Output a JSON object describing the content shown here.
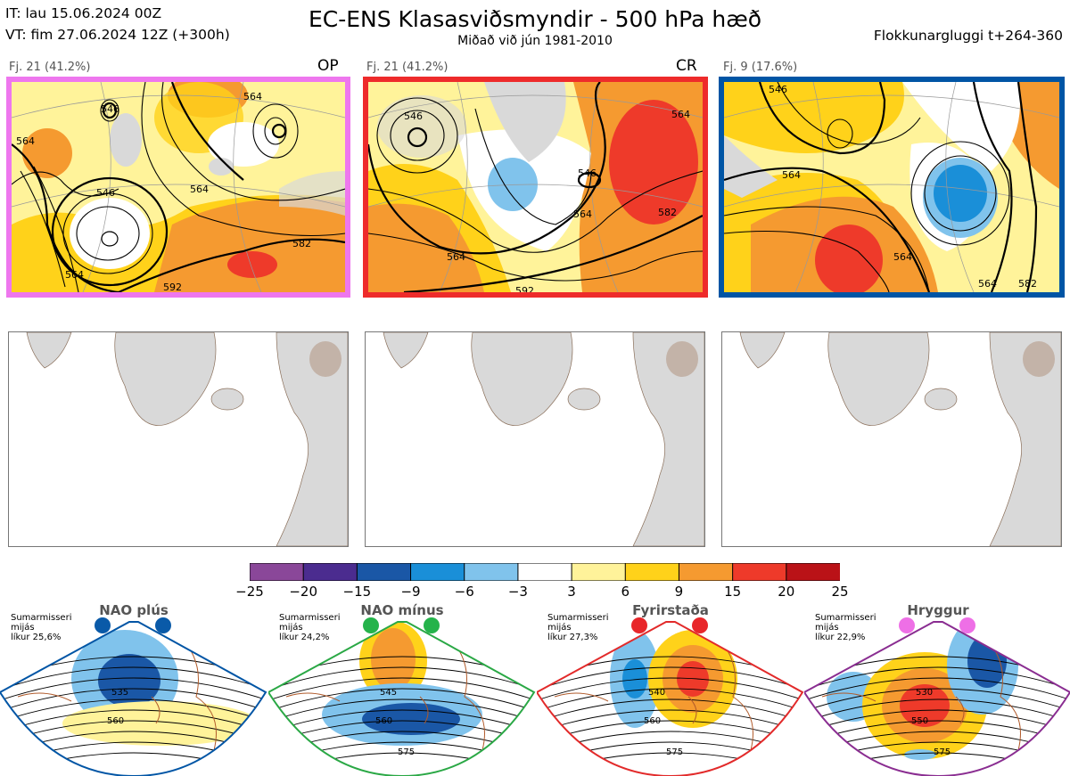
{
  "header": {
    "it_line": "IT: lau 15.06.2024 00Z",
    "vt_line": "VT: fim 27.06.2024 12Z  (+300h)",
    "title": "EC-ENS Klasasviðsmyndir - 500 hPa hæð",
    "subtitle": "Miðað við jún 1981-2010",
    "window": "Flokkunargluggi t+264-360"
  },
  "clusters": [
    {
      "count_label": "Fj. 21 (41.2%)",
      "tag": "OP",
      "border_color": "#ee77ee",
      "contours": [
        "546",
        "564",
        "564",
        "546",
        "564",
        "582",
        "592",
        "564"
      ]
    },
    {
      "count_label": "Fj. 21 (41.2%)",
      "tag": "CR",
      "border_color": "#ee2b2b",
      "contours": [
        "546",
        "546",
        "564",
        "564",
        "582",
        "592"
      ]
    },
    {
      "count_label": "Fj. 9 (17.6%)",
      "tag": "",
      "border_color": "#0055a5",
      "contours": [
        "546",
        "564",
        "564",
        "564",
        "582"
      ]
    }
  ],
  "colorbar": {
    "ticks": [
      "−25",
      "−20",
      "−15",
      "−9",
      "−6",
      "−3",
      "3",
      "6",
      "9",
      "15",
      "20",
      "25"
    ],
    "colors": [
      "#8a4799",
      "#4b2c8f",
      "#1a57a6",
      "#1a8fd8",
      "#80c3ec",
      "#ffffff",
      "#fff39a",
      "#ffd21a",
      "#f59a30",
      "#ee3a2a",
      "#ba1217"
    ]
  },
  "regimes": [
    {
      "name": "NAO plús",
      "season": "Sumarmisseri",
      "mean": "mijás",
      "prob": "líkur 25,6%",
      "color": "#0055a5",
      "dot_color": "#0a5aa8",
      "contours": [
        "535",
        "560"
      ]
    },
    {
      "name": "NAO mínus",
      "season": "Sumarmisseri",
      "mean": "mijás",
      "prob": "líkur 24,2%",
      "color": "#2aa845",
      "dot_color": "#25b34b",
      "contours": [
        "545",
        "560",
        "575"
      ]
    },
    {
      "name": "Fyrirstaða",
      "season": "Sumarmisseri",
      "mean": "mijás",
      "prob": "líkur 27,3%",
      "color": "#e22a2a",
      "dot_color": "#e8262a",
      "contours": [
        "540",
        "560",
        "575"
      ]
    },
    {
      "name": "Hryggur",
      "season": "Sumarmisseri",
      "mean": "mijás",
      "prob": "líkur 22,9%",
      "color": "#8a2d91",
      "dot_color": "#ee6fe6",
      "contours": [
        "530",
        "550",
        "575"
      ]
    }
  ]
}
